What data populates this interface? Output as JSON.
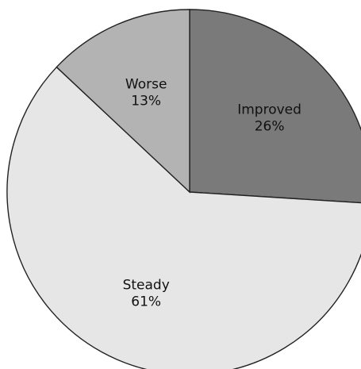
{
  "chart_data": {
    "type": "pie",
    "start_angle_deg": 0,
    "direction": "clockwise",
    "slices": [
      {
        "label": "Improved",
        "value": 26,
        "value_label": "26%",
        "color": "#7a7a7a"
      },
      {
        "label": "Steady",
        "value": 61,
        "value_label": "61%",
        "color": "#e6e6e6"
      },
      {
        "label": "Worse",
        "value": 13,
        "value_label": "13%",
        "color": "#b3b3b3"
      }
    ]
  }
}
